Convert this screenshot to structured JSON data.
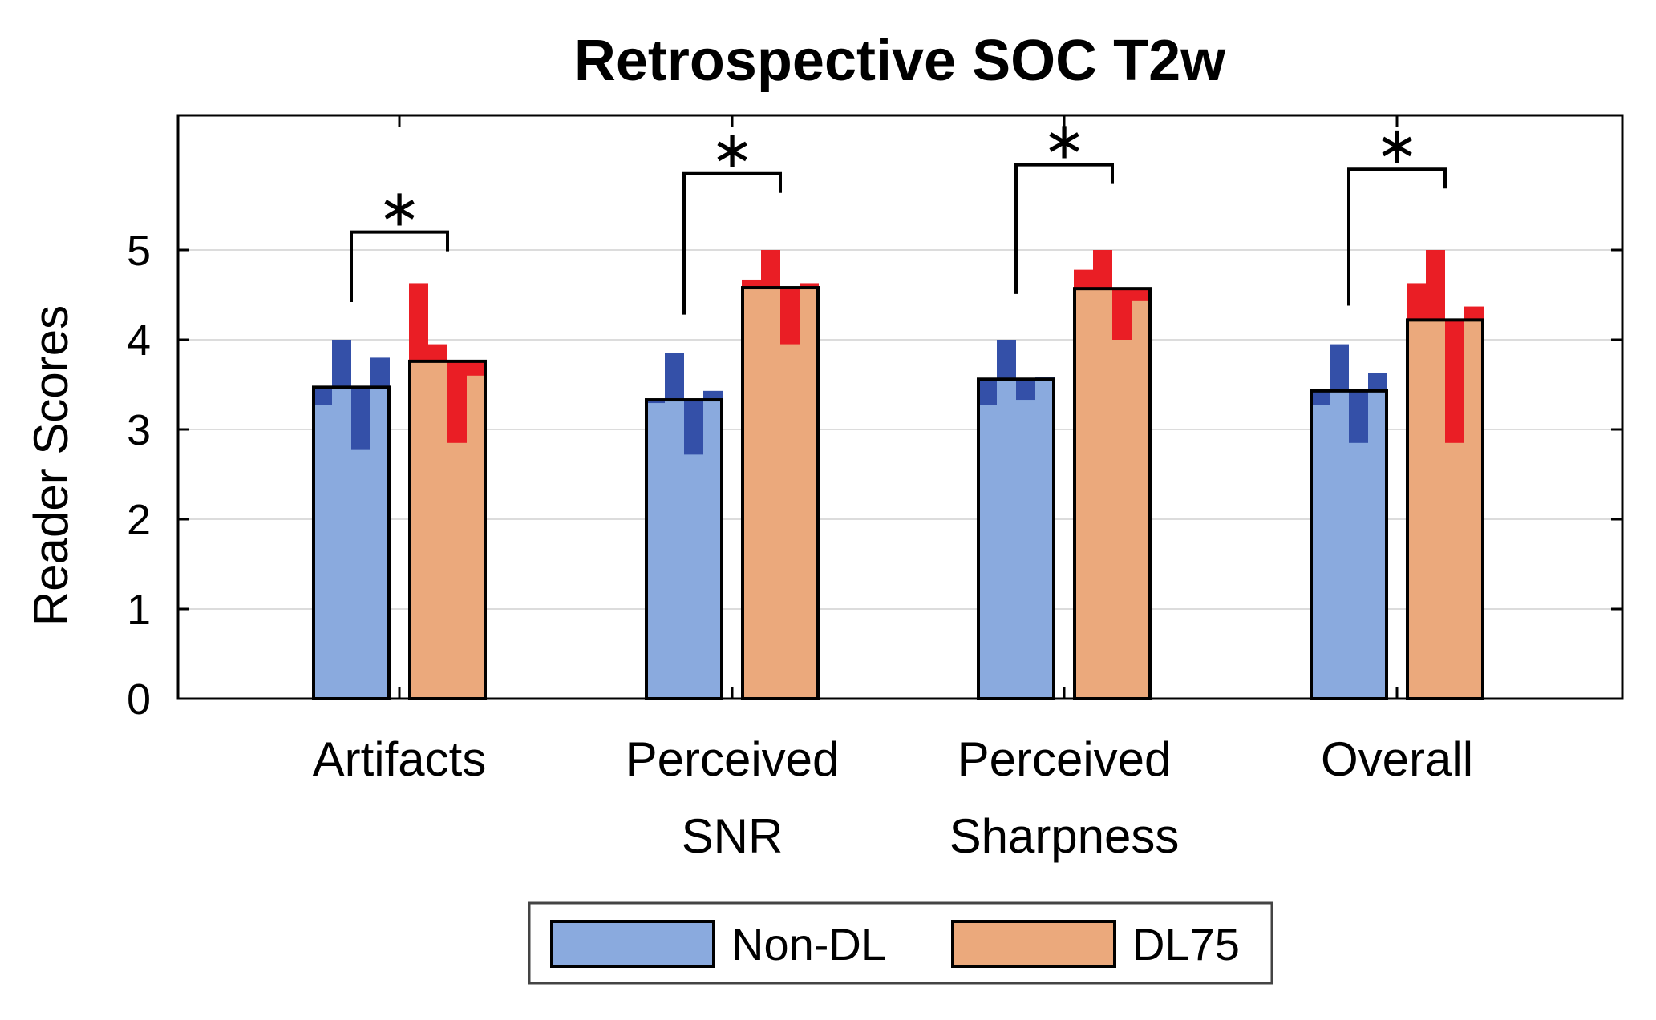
{
  "chart_data": {
    "type": "bar",
    "title": "Retrospective SOC T2w",
    "ylabel": "Reader Scores",
    "xlabel": "",
    "ylim": [
      0,
      6.5
    ],
    "yticks": [
      "0",
      "1",
      "2",
      "3",
      "4",
      "5"
    ],
    "grid": true,
    "legend_position": "bottom",
    "categories": [
      {
        "lines": [
          "Artifacts"
        ]
      },
      {
        "lines": [
          "Perceived",
          "SNR"
        ]
      },
      {
        "lines": [
          "Perceived",
          "Sharpness"
        ]
      },
      {
        "lines": [
          "Overall"
        ]
      }
    ],
    "series": [
      {
        "name": "Non-DL",
        "color": "#8aaade",
        "reader_color": "#3450a8",
        "values": [
          3.47,
          3.33,
          3.56,
          3.43
        ],
        "reader_scores": [
          [
            3.27,
            4.0,
            2.78,
            3.8
          ],
          [
            3.3,
            3.85,
            2.72,
            3.43
          ],
          [
            3.27,
            4.0,
            3.33,
            3.58
          ],
          [
            3.27,
            3.95,
            2.85,
            3.63
          ]
        ]
      },
      {
        "name": "DL75",
        "color": "#eba97c",
        "reader_color": "#ea1e25",
        "values": [
          3.76,
          4.58,
          4.57,
          4.22
        ],
        "reader_scores": [
          [
            4.63,
            3.95,
            2.85,
            3.6
          ],
          [
            4.67,
            5.0,
            3.95,
            4.63
          ],
          [
            4.78,
            5.0,
            4.0,
            4.43
          ],
          [
            4.63,
            5.0,
            2.85,
            4.37
          ]
        ]
      }
    ],
    "significance": [
      {
        "label": "∗",
        "level": 5.2
      },
      {
        "label": "∗",
        "level": 5.85
      },
      {
        "label": "∗",
        "level": 5.95
      },
      {
        "label": "∗",
        "level": 5.9
      }
    ]
  }
}
